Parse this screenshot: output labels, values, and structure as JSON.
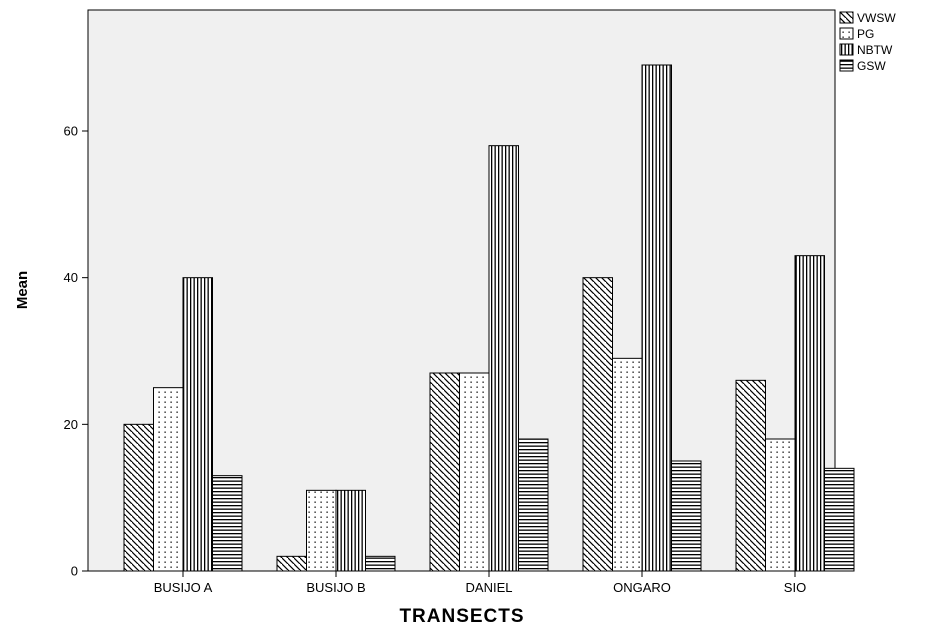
{
  "chart_data": {
    "type": "bar",
    "title": "",
    "xlabel": "TRANSECTS",
    "ylabel": "Mean",
    "categories": [
      "BUSIJO A",
      "BUSIJO B",
      "DANIEL",
      "ONGARO",
      "SIO"
    ],
    "series": [
      {
        "name": "VWSW",
        "pattern": "diagonal",
        "values": [
          20,
          2,
          27,
          40,
          26
        ]
      },
      {
        "name": "PG",
        "pattern": "dotted",
        "values": [
          25,
          11,
          27,
          29,
          18
        ]
      },
      {
        "name": "NBTW",
        "pattern": "vertical",
        "values": [
          40,
          11,
          58,
          69,
          43
        ]
      },
      {
        "name": "GSW",
        "pattern": "horizontal",
        "values": [
          13,
          2,
          18,
          15,
          14
        ]
      }
    ],
    "yticks": [
      0,
      20,
      40,
      60
    ],
    "ylim": [
      0,
      76.5
    ],
    "grid": false,
    "legend_position": "top-right outside",
    "colors": {
      "plot_background": "#f0f0f0",
      "bar_fill": "#ffffff",
      "pattern": "#000000"
    }
  }
}
